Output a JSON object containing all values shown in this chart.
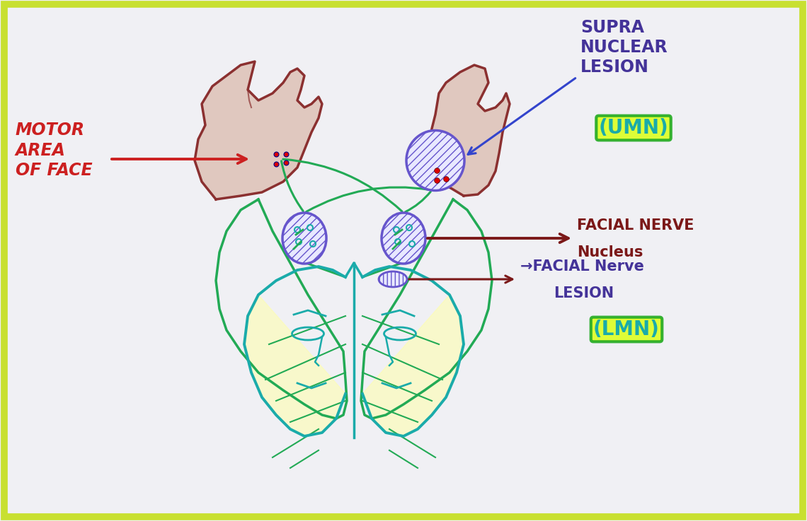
{
  "bg_color": "#f0f0f4",
  "border_color": "#c8e030",
  "colors": {
    "brain_outline": "#8B3030",
    "brain_fill": "#C8876A",
    "green_tract": "#22AA55",
    "teal_face": "#1AABAA",
    "purple_nucleus": "#6655CC",
    "red_label": "#CC2020",
    "dark_purple": "#443399",
    "dark_red_arrow": "#7B1818",
    "blue_arrow": "#3344CC",
    "yellow_fill": "#FFFFAA",
    "red_dot": "#DD0000",
    "white": "#FFFFFF",
    "lmn_green": "#22AA22",
    "lmn_teal": "#11AAAA"
  },
  "motor_area_text": "MOTOR\nAREA\nOF FACE",
  "supra_nuclear_text": "SUPRA\nNUCLEAR\nLESION",
  "umn_text": "(UMN)",
  "facial_nerve_nucleus_line1": "FACIAL NERVE",
  "facial_nerve_nucleus_line2": "Nucleus",
  "facial_nerve_lesion_line1": "→FACIAL Nerve",
  "facial_nerve_lesion_line2": "LESION",
  "lmn_text": "(LMN)"
}
